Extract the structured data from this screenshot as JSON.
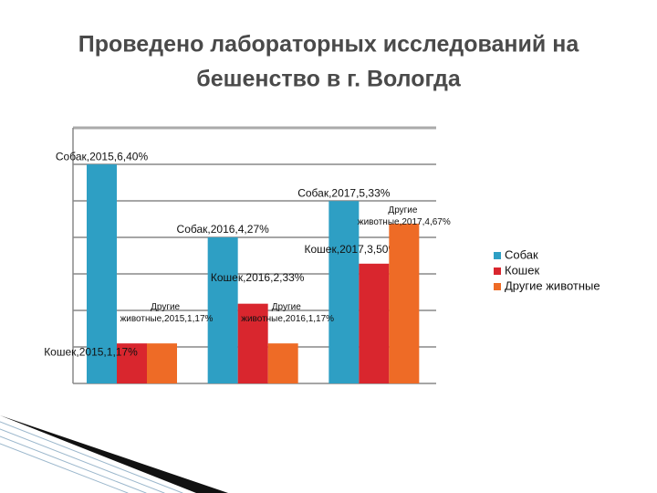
{
  "title": [
    "Проведено лабораторных исследований на",
    "бешенство в г. Вологда"
  ],
  "chart_data": {
    "type": "bar",
    "categories": [
      null,
      null,
      null
    ],
    "series": [
      {
        "name": "Собак",
        "color": "#2e9fc4",
        "values": [
          6.4,
          4.27,
          5.33
        ],
        "value_labels": [
          "Собак,2015,6,40%",
          "Собак,2016,4,27%",
          "Собак,2017,5,33%"
        ]
      },
      {
        "name": "Кошек",
        "color": "#d9262e",
        "values": [
          1.17,
          2.33,
          3.5
        ],
        "value_labels": [
          "Кошек,2015,1,17%",
          "Кошек,2016,2,33%",
          "Кошек,2017,3,50%"
        ]
      },
      {
        "name": "Другие животные",
        "color": "#ee6b26",
        "values": [
          1.17,
          1.17,
          4.67
        ],
        "value_labels": [
          "Другие животные,2015,1,17%",
          "Другие животные,2016,1,17%",
          "Другие животные,2017,4,67%"
        ]
      }
    ],
    "ylim": [
      0,
      7.47
    ],
    "grid": true,
    "legend": "right"
  }
}
